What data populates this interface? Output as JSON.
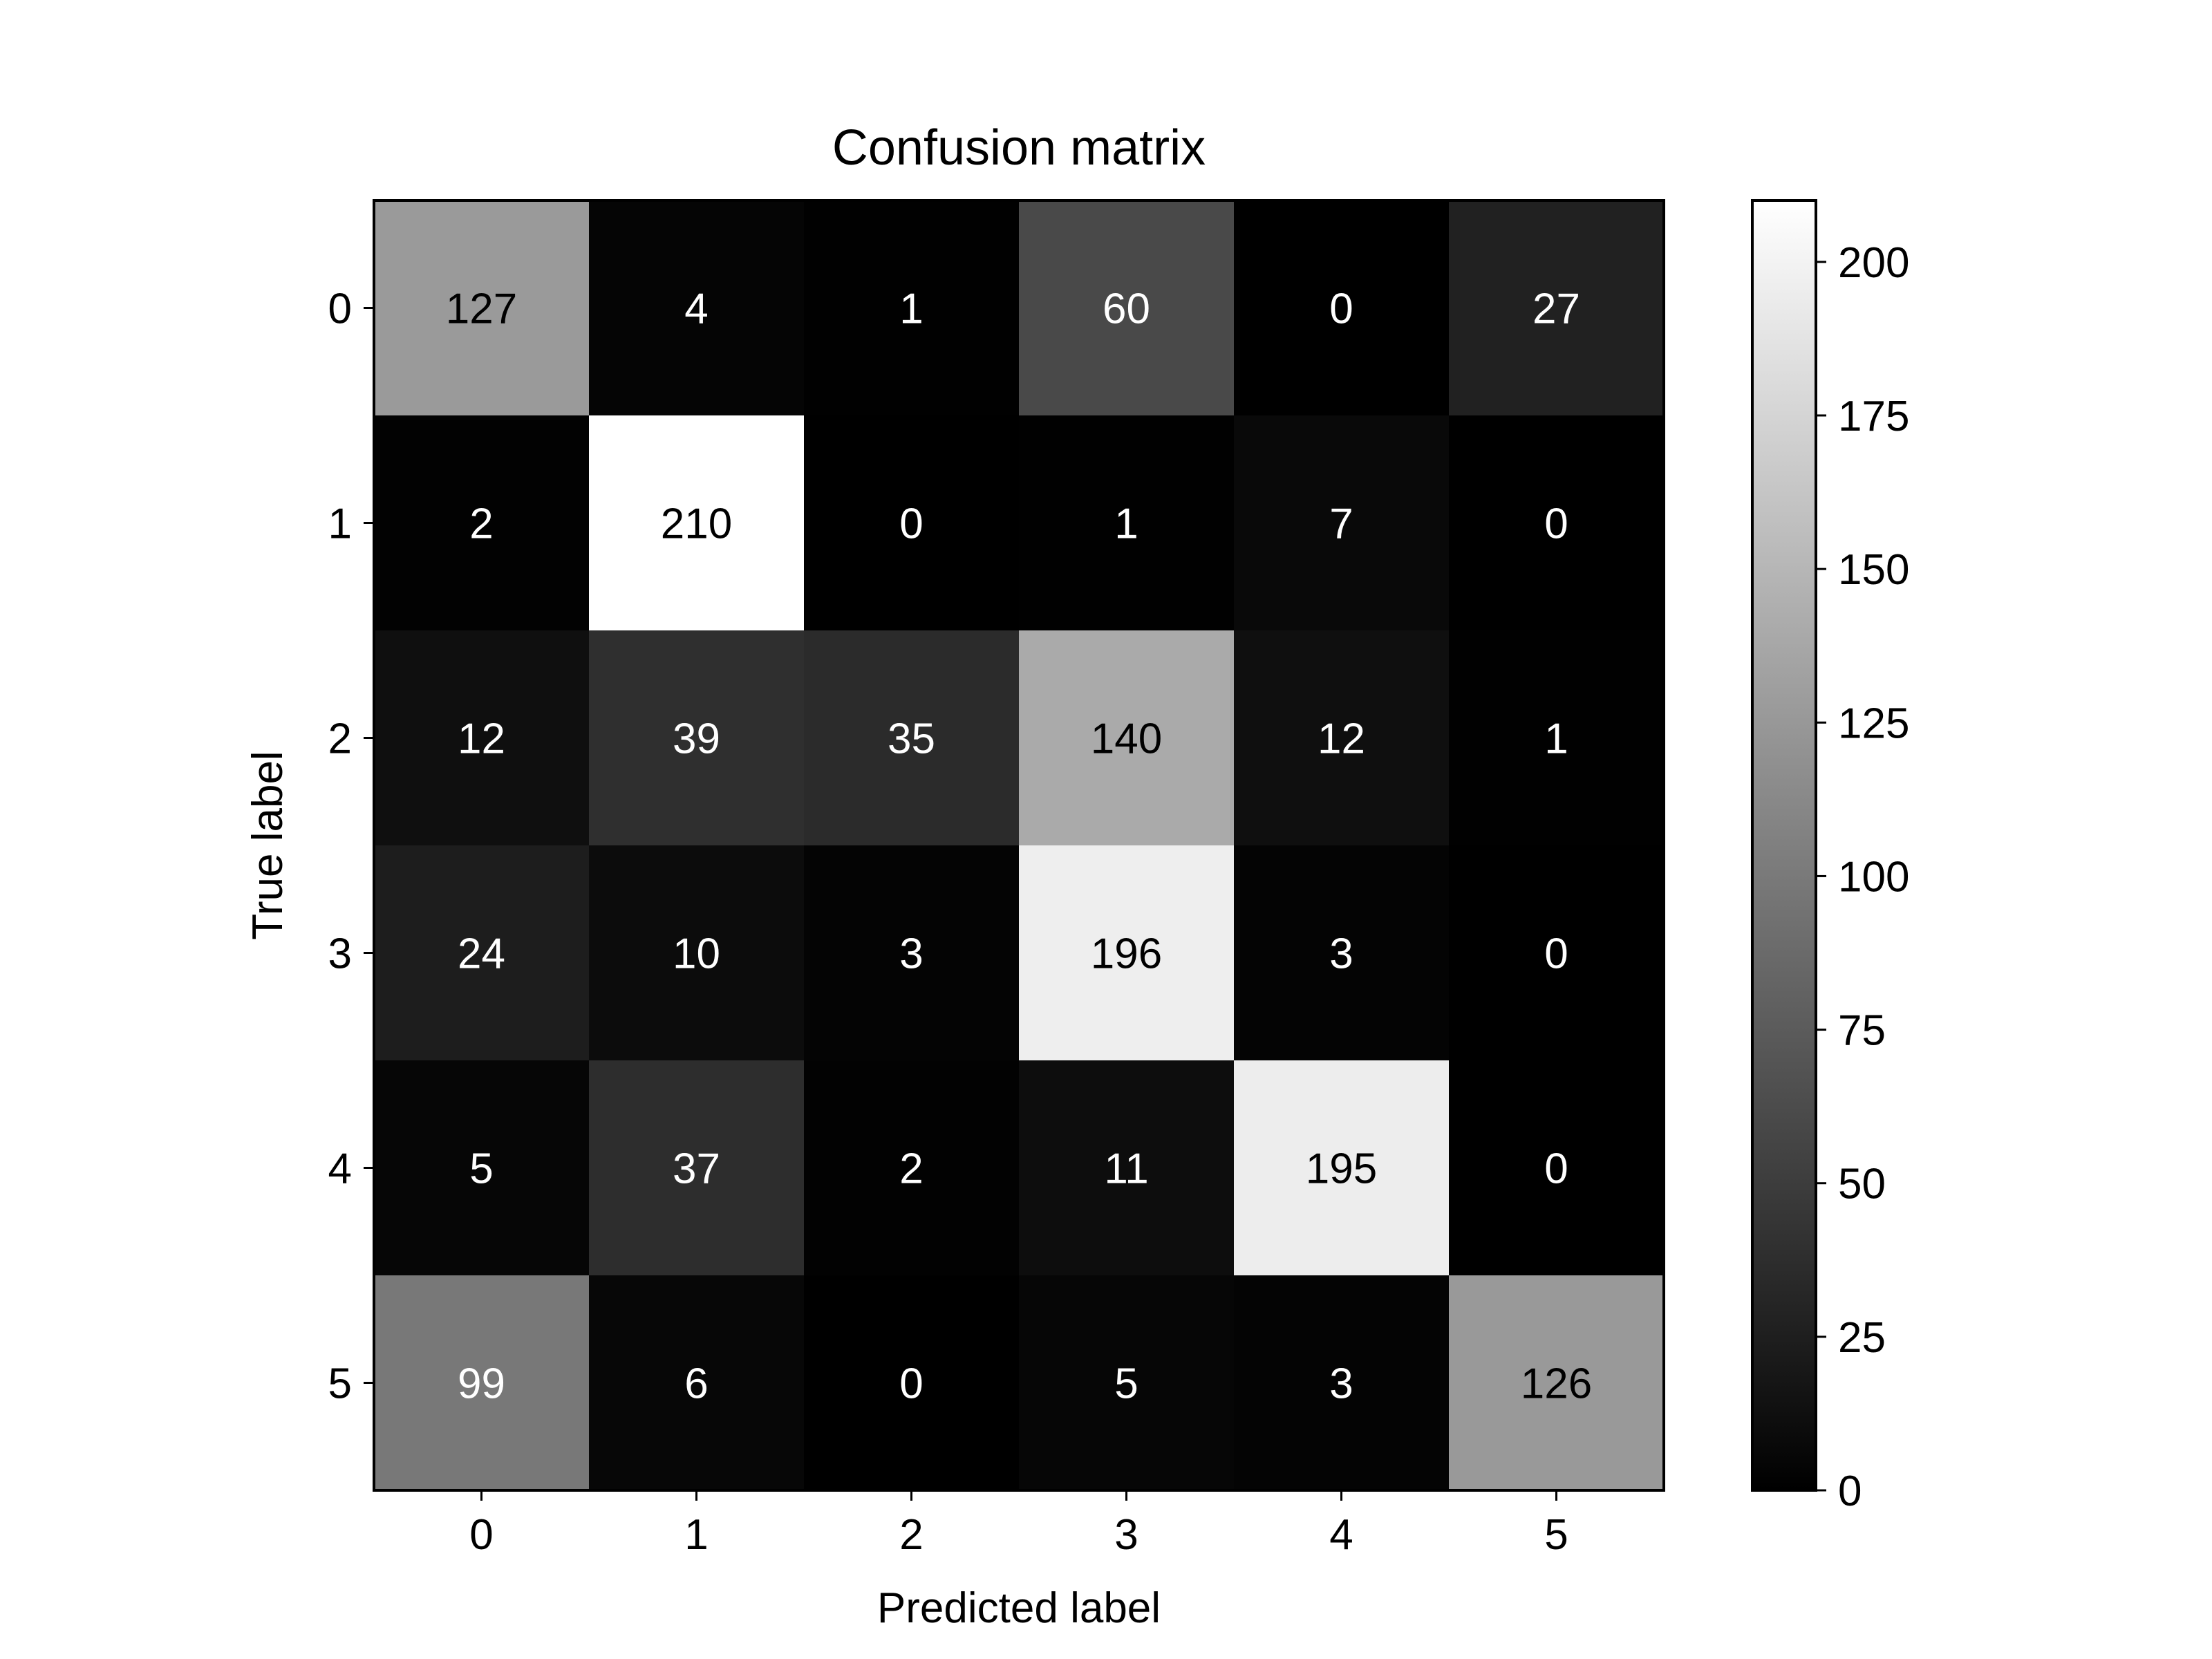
{
  "chart_data": {
    "type": "heatmap",
    "title": "Confusion matrix",
    "xlabel": "Predicted label",
    "ylabel": "True label",
    "x_categories": [
      "0",
      "1",
      "2",
      "3",
      "4",
      "5"
    ],
    "y_categories": [
      "0",
      "1",
      "2",
      "3",
      "4",
      "5"
    ],
    "values": [
      [
        127,
        4,
        1,
        60,
        0,
        27
      ],
      [
        2,
        210,
        0,
        1,
        7,
        0
      ],
      [
        12,
        39,
        35,
        140,
        12,
        1
      ],
      [
        24,
        10,
        3,
        196,
        3,
        0
      ],
      [
        5,
        37,
        2,
        11,
        195,
        0
      ],
      [
        99,
        6,
        0,
        5,
        3,
        126
      ]
    ],
    "colormap": "gray",
    "value_range": [
      0,
      210
    ],
    "colorbar_ticks": [
      0,
      25,
      50,
      75,
      100,
      125,
      150,
      175,
      200
    ],
    "annotation_threshold": 105,
    "colors": {
      "text_dark": "#000000",
      "text_light": "#ffffff",
      "axes": "#000000",
      "background": "#ffffff"
    },
    "grid": false,
    "legend": "colorbar-right"
  }
}
